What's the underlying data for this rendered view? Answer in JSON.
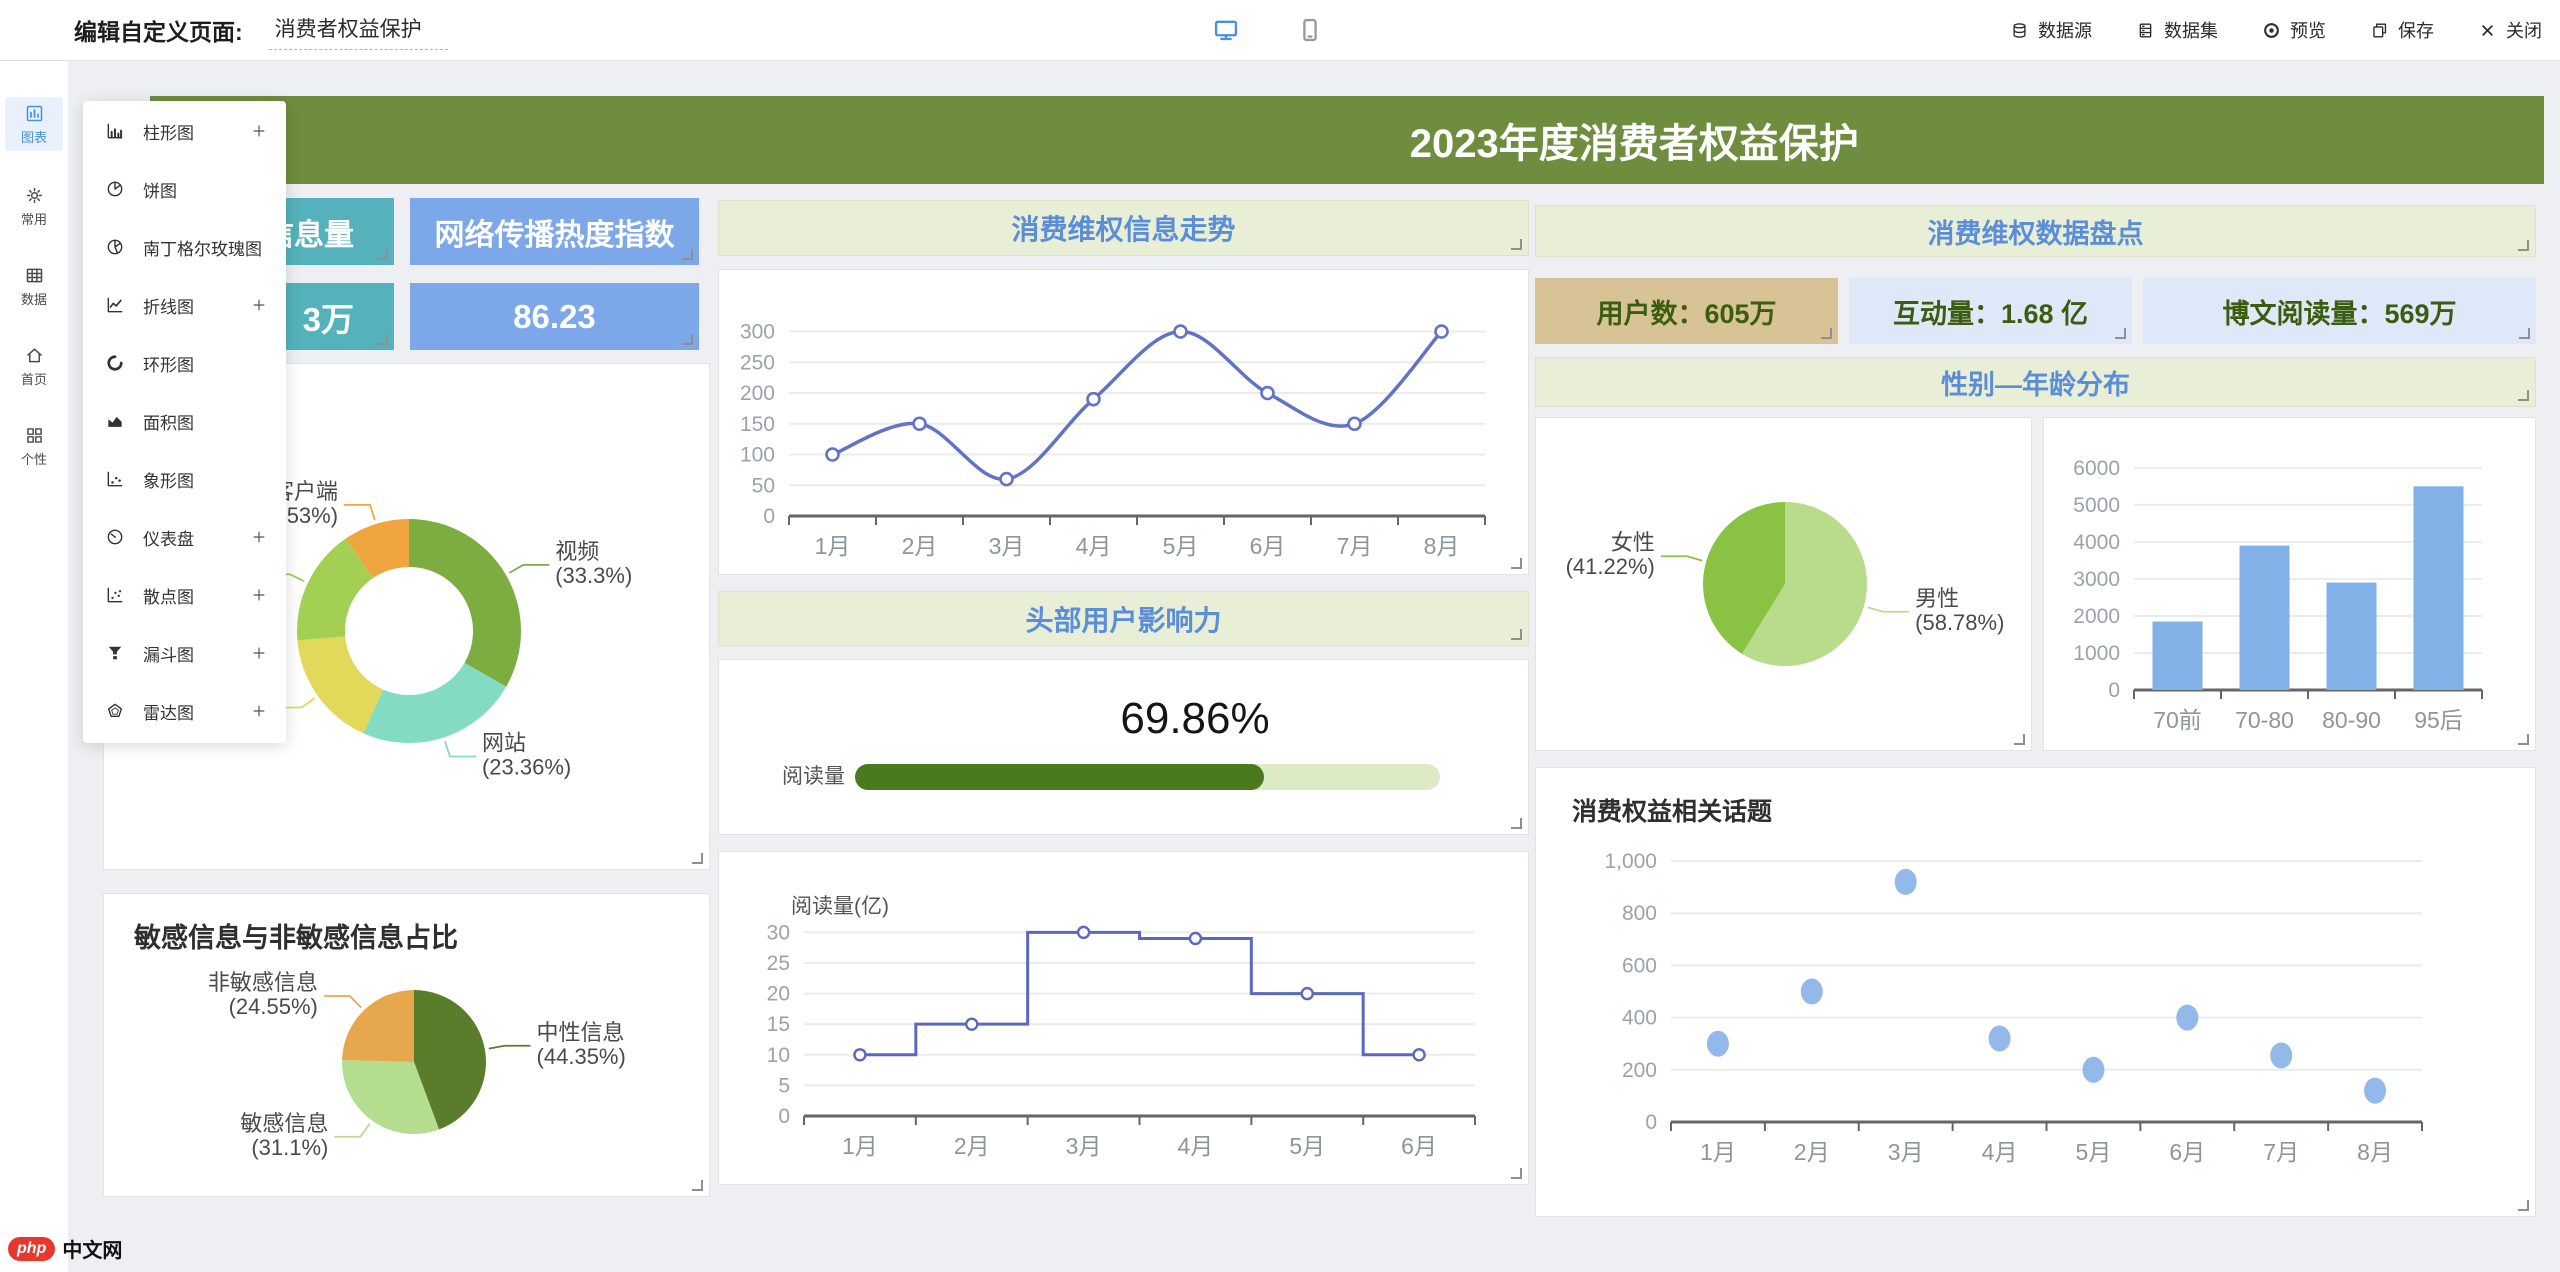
{
  "topbar": {
    "title_label": "编辑自定义页面:",
    "page_name": "消费者权益保护",
    "actions": [
      {
        "name": "datasource",
        "icon": "datasource-icon",
        "label": "数据源"
      },
      {
        "name": "dataset",
        "icon": "dataset-icon",
        "label": "数据集"
      },
      {
        "name": "preview",
        "icon": "eye-icon",
        "label": "预览"
      },
      {
        "name": "save",
        "icon": "save-icon",
        "label": "保存"
      },
      {
        "name": "close",
        "icon": "close-icon",
        "label": "关闭"
      }
    ]
  },
  "sidebar": {
    "items": [
      {
        "name": "charts",
        "icon": "chart-icon",
        "label": "图表",
        "active": true
      },
      {
        "name": "common",
        "icon": "gear-icon",
        "label": "常用",
        "active": false
      },
      {
        "name": "data",
        "icon": "table-icon",
        "label": "数据",
        "active": false
      },
      {
        "name": "home",
        "icon": "home-icon",
        "label": "首页",
        "active": false
      },
      {
        "name": "personal",
        "icon": "grid-icon",
        "label": "个性",
        "active": false
      }
    ]
  },
  "chart_menu": {
    "items": [
      {
        "name": "bar",
        "icon": "bar-chart-icon",
        "label": "柱形图",
        "expandable": true
      },
      {
        "name": "pie",
        "icon": "pie-chart-icon",
        "label": "饼图",
        "expandable": false
      },
      {
        "name": "rose",
        "icon": "rose-chart-icon",
        "label": "南丁格尔玫瑰图",
        "expandable": false
      },
      {
        "name": "line",
        "icon": "line-chart-icon",
        "label": "折线图",
        "expandable": true
      },
      {
        "name": "ring",
        "icon": "ring-chart-icon",
        "label": "环形图",
        "expandable": false
      },
      {
        "name": "area",
        "icon": "area-chart-icon",
        "label": "面积图",
        "expandable": false
      },
      {
        "name": "pictogram",
        "icon": "pictogram-chart-icon",
        "label": "象形图",
        "expandable": false
      },
      {
        "name": "gauge",
        "icon": "gauge-chart-icon",
        "label": "仪表盘",
        "expandable": true
      },
      {
        "name": "scatter",
        "icon": "scatter-chart-icon",
        "label": "散点图",
        "expandable": true
      },
      {
        "name": "funnel",
        "icon": "funnel-chart-icon",
        "label": "漏斗图",
        "expandable": true
      },
      {
        "name": "radar",
        "icon": "radar-chart-icon",
        "label": "雷达图",
        "expandable": true
      }
    ]
  },
  "dashboard": {
    "banner_title": "2023年度消费者权益保护",
    "stat_cards": {
      "info_volume_title": "信息量",
      "info_volume_value": "3万",
      "heat_index_title": "网络传播热度指数",
      "heat_index_value": "86.23"
    },
    "headers": {
      "trend": "消费维权信息走势",
      "influence": "头部用户影响力",
      "data_review": "消费维权数据盘点",
      "gender_age": "性别—年龄分布"
    },
    "review_stats": [
      {
        "text": "用户数：605万"
      },
      {
        "text": "互动量：1.68 亿"
      },
      {
        "text": "博文阅读量：569万"
      }
    ]
  },
  "footer_logo": {
    "badge": "php",
    "text": "中文网"
  },
  "colors": {
    "banner": "#6e8d3e",
    "teal_card": "#55b1bb",
    "blue_card": "#7ca7e9",
    "green_header_bg": "#e9efd6",
    "green_header_text": "#5a8ed9",
    "tan_stat": "#d8c396",
    "lavender_stat": "#dfe8f8",
    "stat_text": "#3b5d10",
    "active_sidebar": "#4a90d9"
  },
  "chart_data": [
    {
      "id": "trend-line",
      "type": "line",
      "smooth": true,
      "x": [
        "1月",
        "2月",
        "3月",
        "4月",
        "5月",
        "6月",
        "7月",
        "8月"
      ],
      "values": [
        100,
        150,
        60,
        190,
        300,
        200,
        150,
        300
      ],
      "ylim": [
        0,
        335
      ],
      "yticks": [
        0,
        50,
        100,
        150,
        200,
        250,
        300
      ],
      "grid": true,
      "color": "#6272c4"
    },
    {
      "id": "age-bar",
      "type": "bar",
      "categories": [
        "70前",
        "70-80",
        "80-90",
        "95后"
      ],
      "values": [
        1850,
        3900,
        2900,
        5500
      ],
      "ylim": [
        0,
        6400
      ],
      "yticks": [
        0,
        1000,
        2000,
        3000,
        4000,
        5000,
        6000
      ],
      "grid": true,
      "color": "#82b1e8"
    },
    {
      "id": "gender-pie",
      "type": "pie",
      "slices": [
        {
          "label": "男性",
          "pct": 58.78,
          "color": "#b9dc8c"
        },
        {
          "label": "女性",
          "pct": 41.22,
          "color": "#8ac344"
        }
      ]
    },
    {
      "id": "channel-donut",
      "type": "donut",
      "slices": [
        {
          "label": "视频",
          "pct": 33.3,
          "color": "#7dac40"
        },
        {
          "label": "网站",
          "pct": 23.36,
          "color": "#83dcc2"
        },
        {
          "label": "",
          "pct": 17.0,
          "color": "#e2d95b"
        },
        {
          "label": "",
          "pct": 16.81,
          "color": "#a3cf53"
        },
        {
          "label": "客户端",
          "pct": 9.53,
          "color": "#efa63f"
        }
      ]
    },
    {
      "id": "info-pie",
      "type": "pie",
      "title": "敏感信息与非敏感信息占比",
      "slices": [
        {
          "label": "中性信息",
          "pct": 44.35,
          "color": "#5b7d2b"
        },
        {
          "label": "敏感信息",
          "pct": 31.1,
          "color": "#b5dd8f"
        },
        {
          "label": "非敏感信息",
          "pct": 24.55,
          "color": "#e7a84d"
        }
      ]
    },
    {
      "id": "read-step",
      "type": "step",
      "ylabel": "阅读量(亿)",
      "x": [
        "1月",
        "2月",
        "3月",
        "4月",
        "5月",
        "6月"
      ],
      "values": [
        10,
        15,
        30,
        29,
        20,
        10
      ],
      "ylim": [
        0,
        33
      ],
      "yticks": [
        0,
        5,
        10,
        15,
        20,
        25,
        30
      ],
      "grid": true,
      "color": "#5a68bd"
    },
    {
      "id": "topics-scatter",
      "type": "scatter",
      "title": "消费权益相关话题",
      "x": [
        "1月",
        "2月",
        "3月",
        "4月",
        "5月",
        "6月",
        "7月",
        "8月"
      ],
      "values": [
        300,
        500,
        920,
        320,
        200,
        400,
        255,
        120
      ],
      "ylim": [
        0,
        1050
      ],
      "yticks": [
        0,
        200,
        400,
        600,
        800,
        1000
      ],
      "ytick_labels": [
        "0",
        "200",
        "400",
        "600",
        "800",
        "1,000"
      ],
      "grid": true,
      "color": "#93b9ea"
    },
    {
      "id": "influence-progress",
      "type": "progress",
      "label": "阅读量",
      "pct": 69.86,
      "value_text": "69.86%",
      "color": "#4b7a1e",
      "track": "#dcebc6"
    }
  ]
}
